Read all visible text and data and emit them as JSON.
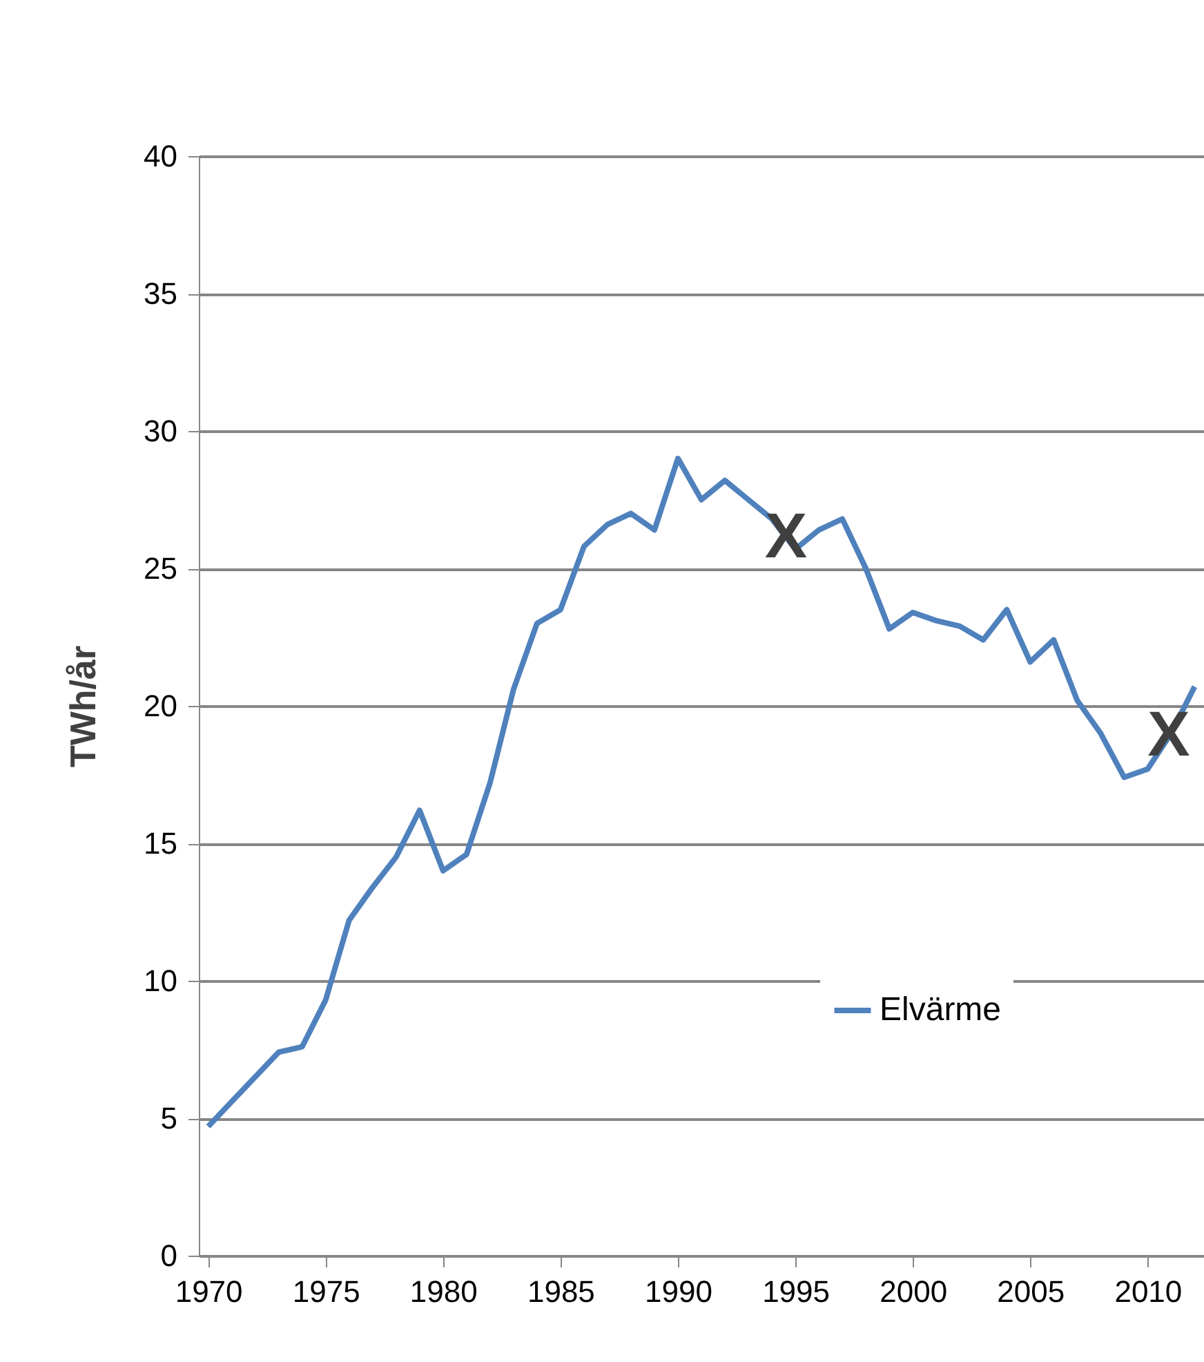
{
  "chart_data": {
    "type": "line",
    "ylabel": "TWh/år",
    "x": [
      1970,
      1971,
      1972,
      1973,
      1974,
      1975,
      1976,
      1977,
      1978,
      1979,
      1980,
      1981,
      1982,
      1983,
      1984,
      1985,
      1986,
      1987,
      1988,
      1989,
      1990,
      1991,
      1992,
      1993,
      1994,
      1995,
      1996,
      1997,
      1998,
      1999,
      2000,
      2001,
      2002,
      2003,
      2004,
      2005,
      2006,
      2007,
      2008,
      2009,
      2010,
      2011,
      2012
    ],
    "series": [
      {
        "name": "Elvärme",
        "color": "#4f81bd",
        "values": [
          4.7,
          5.6,
          6.5,
          7.4,
          7.6,
          9.3,
          12.2,
          13.4,
          14.5,
          16.2,
          14.0,
          14.6,
          17.2,
          20.6,
          23.0,
          23.5,
          25.8,
          26.6,
          27.0,
          26.4,
          29.0,
          27.5,
          28.2,
          27.5,
          26.8,
          25.7,
          26.4,
          26.8,
          25.0,
          22.8,
          23.4,
          23.1,
          22.9,
          22.4,
          23.5,
          21.6,
          22.4,
          20.2,
          19.0,
          17.4,
          17.7,
          19.0,
          20.7
        ]
      }
    ],
    "xlim": [
      1969.6,
      2012.4
    ],
    "xticks": [
      1970,
      1975,
      1980,
      1985,
      1990,
      1995,
      2000,
      2005,
      2010
    ],
    "ylim": [
      0,
      40
    ],
    "yticks": [
      0,
      5,
      10,
      15,
      20,
      25,
      30,
      35,
      40
    ],
    "grid": "y",
    "legend": "bottom right",
    "marker": "none",
    "line_style": "solid",
    "annotations": [
      {
        "text": "X",
        "x": 1994.6,
        "y": 26.1
      },
      {
        "text": "X",
        "x": 2010.9,
        "y": 18.9
      }
    ]
  }
}
